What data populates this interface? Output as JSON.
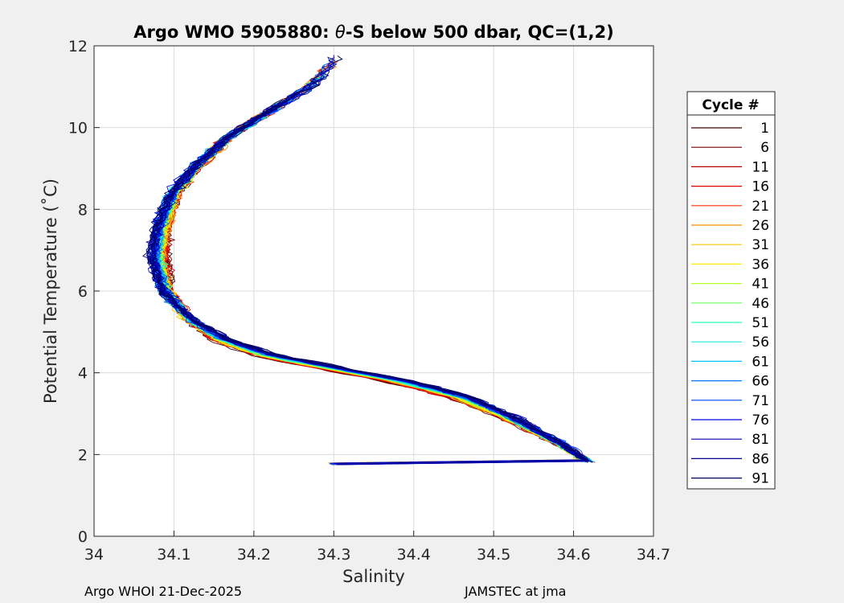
{
  "chart_data": {
    "type": "line",
    "title": "Argo WMO 5905880: θ-S below 500 dbar,  QC=(1,2)",
    "title_prefix": "Argo WMO 5905880: ",
    "title_theta": "θ",
    "title_suffix": "-S below 500 dbar,  QC=(1,2)",
    "xlabel": "Salinity",
    "ylabel": "Potential Temperature (˚C)",
    "xlim": [
      34.0,
      34.7
    ],
    "ylim": [
      0,
      12
    ],
    "xticks": [
      "34",
      "34.1",
      "34.2",
      "34.3",
      "34.4",
      "34.5",
      "34.6",
      "34.7"
    ],
    "yticks": [
      "0",
      "2",
      "4",
      "6",
      "8",
      "10",
      "12"
    ],
    "grid": true,
    "legend": {
      "title": "Cycle #",
      "position": "right-outside",
      "entries": [
        {
          "label": "1",
          "color": "#3a0000"
        },
        {
          "label": "6",
          "color": "#700000"
        },
        {
          "label": "11",
          "color": "#b00000"
        },
        {
          "label": "16",
          "color": "#e00000"
        },
        {
          "label": "21",
          "color": "#ff3000"
        },
        {
          "label": "26",
          "color": "#ff8a00"
        },
        {
          "label": "31",
          "color": "#ffc400"
        },
        {
          "label": "36",
          "color": "#fff000"
        },
        {
          "label": "41",
          "color": "#b8ff2a"
        },
        {
          "label": "46",
          "color": "#6cff62"
        },
        {
          "label": "51",
          "color": "#2affb0"
        },
        {
          "label": "56",
          "color": "#20ece0"
        },
        {
          "label": "61",
          "color": "#00c0ff"
        },
        {
          "label": "66",
          "color": "#0078ff"
        },
        {
          "label": "71",
          "color": "#0044ff"
        },
        {
          "label": "76",
          "color": "#0008e0"
        },
        {
          "label": "81",
          "color": "#0000b4"
        },
        {
          "label": "86",
          "color": "#00008a"
        },
        {
          "label": "91",
          "color": "#000060"
        }
      ]
    },
    "representative_profile": {
      "salinity": [
        34.62,
        34.58,
        34.52,
        34.46,
        34.38,
        34.3,
        34.22,
        34.16,
        34.12,
        34.09,
        34.08,
        34.085,
        34.1,
        34.13,
        34.17,
        34.22,
        34.27,
        34.3
      ],
      "temperature": [
        1.8,
        2.3,
        2.9,
        3.4,
        3.8,
        4.1,
        4.4,
        4.8,
        5.3,
        6.0,
        6.8,
        7.6,
        8.4,
        9.1,
        9.8,
        10.4,
        11.0,
        11.6
      ]
    },
    "cycles": [
      1,
      6,
      11,
      16,
      21,
      26,
      31,
      36,
      41,
      46,
      51,
      56,
      61,
      66,
      71,
      76,
      81,
      86,
      91
    ]
  },
  "footer": {
    "left": "Argo WHOI 21-Dec-2025",
    "right": "JAMSTEC at jma"
  }
}
